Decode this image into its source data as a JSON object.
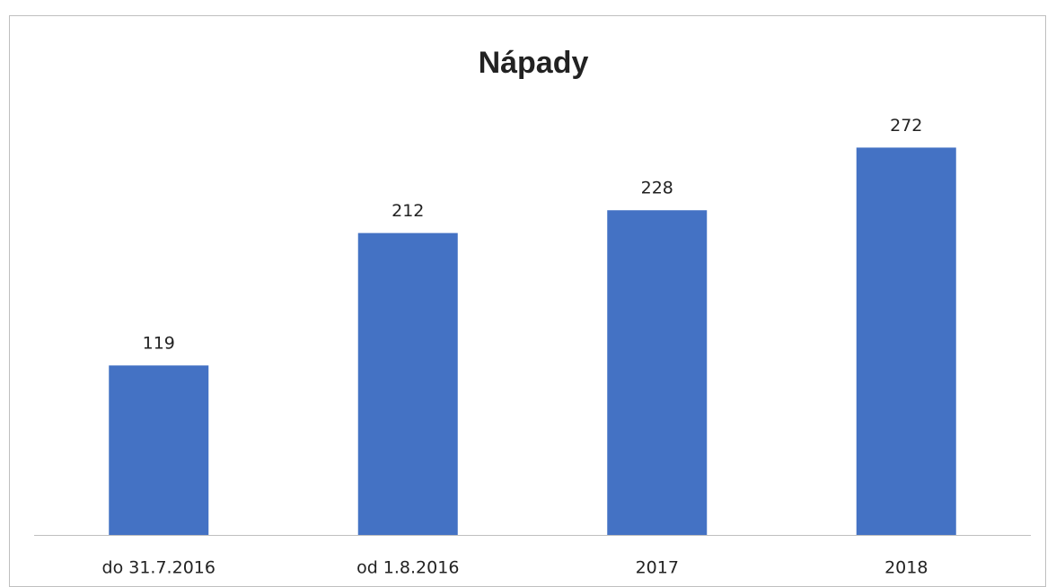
{
  "chart_data": {
    "type": "bar",
    "title": "Nápady",
    "categories": [
      "do 31.7.2016",
      "od 1.8.2016",
      "2017",
      "2018"
    ],
    "values": [
      119,
      212,
      228,
      272
    ],
    "color": "#4472c4",
    "ylim": [
      0,
      300
    ]
  }
}
